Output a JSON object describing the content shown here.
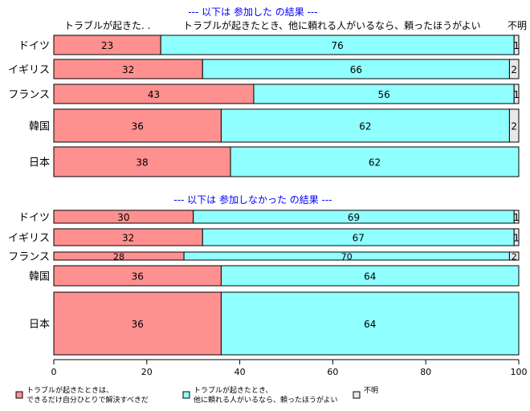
{
  "chart_data": {
    "type": "bar",
    "orientation": "horizontal",
    "stacked": true,
    "xlim": [
      0,
      100
    ],
    "x_ticks": [
      0,
      20,
      40,
      60,
      80,
      100
    ],
    "column_headers": {
      "a": "トラブルが起きた. .",
      "b": "トラブルが起きたとき、他に頼れる人がいるなら、頼ったほうがよい",
      "c": "不明"
    },
    "legend": [
      {
        "key": "a",
        "color": "#ff9090",
        "line1": "トラブルが起きたときは、",
        "line2": "できるだけ自分ひとりで解決すべきだ"
      },
      {
        "key": "b",
        "color": "#90ffff",
        "line1": "トラブルが起きたとき、",
        "line2": "他に頼れる人がいるなら、頼ったほうがよい"
      },
      {
        "key": "c",
        "color": "#e8e8e8",
        "line1": "不明",
        "line2": ""
      }
    ],
    "panels": [
      {
        "title": "--- 以下は 参加した の結果 ---",
        "rows": [
          {
            "label": "ドイツ",
            "values": [
              23,
              76,
              1
            ]
          },
          {
            "label": "イギリス",
            "values": [
              32,
              66,
              2
            ]
          },
          {
            "label": "フランス",
            "values": [
              43,
              56,
              1
            ]
          },
          {
            "label": "韓国",
            "values": [
              36,
              62,
              2
            ]
          },
          {
            "label": "日本",
            "values": [
              38,
              62,
              0
            ]
          }
        ]
      },
      {
        "title": "--- 以下は 参加しなかった の結果 ---",
        "rows": [
          {
            "label": "ドイツ",
            "values": [
              30,
              69,
              1
            ]
          },
          {
            "label": "イギリス",
            "values": [
              32,
              67,
              1
            ]
          },
          {
            "label": "フランス",
            "values": [
              28,
              70,
              2
            ]
          },
          {
            "label": "韓国",
            "values": [
              36,
              64,
              0
            ]
          },
          {
            "label": "日本",
            "values": [
              36,
              64,
              0
            ]
          }
        ]
      }
    ]
  }
}
